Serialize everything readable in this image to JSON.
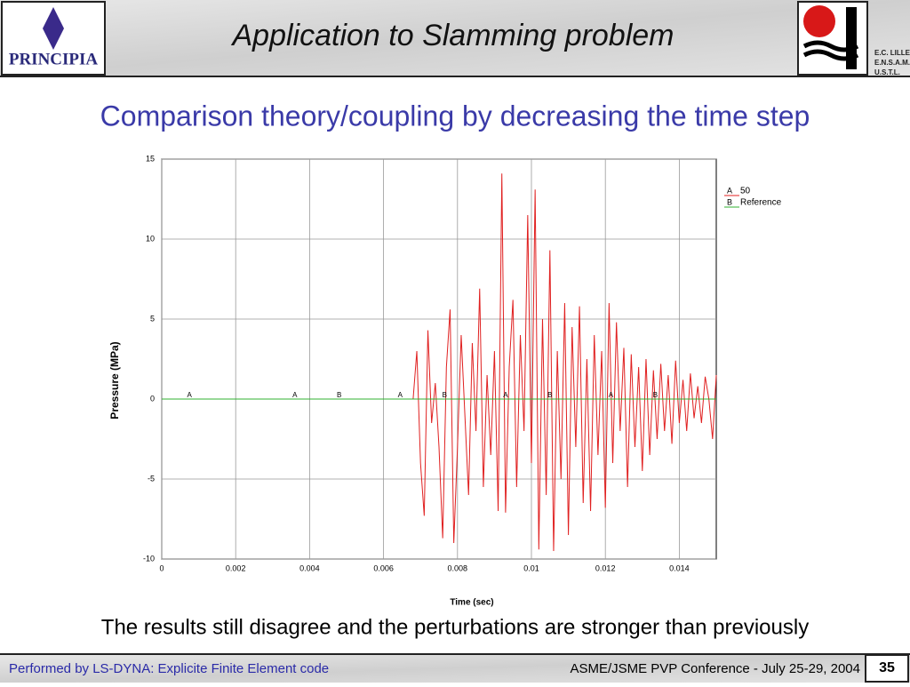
{
  "header": {
    "title": "Application to Slamming problem",
    "left_logo": "PRINCIPIA",
    "right_logo_lines": [
      "E.C. LILLE",
      "E.N.S.A.M.",
      "U.S.T.L."
    ]
  },
  "subtitle": "Comparison theory/coupling by decreasing the time step",
  "caption": "The results still disagree and the perturbations are stronger than previously",
  "footer": {
    "left": "Performed by LS-DYNA: Explicite Finite Element code",
    "right": "ASME/JSME PVP Conference - July 25-29, 2004",
    "page": "35"
  },
  "chart_data": {
    "type": "line",
    "xlabel": "Time (sec)",
    "ylabel": "Pressure (MPa)",
    "xlim": [
      0,
      0.015
    ],
    "xticks": [
      0,
      0.002,
      0.004,
      0.006,
      0.008,
      0.01,
      0.012,
      0.014
    ],
    "ylim": [
      -10,
      15
    ],
    "yticks": [
      -10,
      -5,
      0,
      5,
      10,
      15
    ],
    "grid": true,
    "series": [
      {
        "name": "50",
        "marker": "A",
        "color": "#e02020",
        "x": [
          0,
          0.0068,
          0.0069,
          0.007,
          0.0071,
          0.0072,
          0.0073,
          0.0074,
          0.0075,
          0.0076,
          0.0077,
          0.0078,
          0.0079,
          0.008,
          0.0081,
          0.0082,
          0.0083,
          0.0084,
          0.0085,
          0.0086,
          0.0087,
          0.0088,
          0.0089,
          0.009,
          0.0091,
          0.0092,
          0.0093,
          0.0094,
          0.0095,
          0.0096,
          0.0097,
          0.0098,
          0.0099,
          0.01,
          0.0101,
          0.0102,
          0.0103,
          0.0104,
          0.0105,
          0.0106,
          0.0107,
          0.0108,
          0.0109,
          0.011,
          0.0111,
          0.0112,
          0.0113,
          0.0114,
          0.0115,
          0.0116,
          0.0117,
          0.0118,
          0.0119,
          0.012,
          0.0121,
          0.0122,
          0.0123,
          0.0124,
          0.0125,
          0.0126,
          0.0127,
          0.0128,
          0.0129,
          0.013,
          0.0131,
          0.0132,
          0.0133,
          0.0134,
          0.0135,
          0.0136,
          0.0137,
          0.0138,
          0.0139,
          0.014,
          0.0141,
          0.0142,
          0.0143,
          0.0144,
          0.0145,
          0.0146,
          0.0147,
          0.0148,
          0.0149,
          0.015
        ],
        "values": [
          0,
          0,
          3,
          -4,
          -7.3,
          4.3,
          -1.5,
          1,
          -3,
          -8.7,
          2,
          5.6,
          -9,
          -3,
          4,
          -1,
          -6,
          3.5,
          -2,
          6.9,
          -5.5,
          1.5,
          -3.5,
          3,
          -7,
          14.1,
          -7.1,
          2,
          6.2,
          -5.5,
          4,
          -2,
          11.5,
          -4,
          13.1,
          -9.4,
          5,
          -6,
          9.3,
          -9.5,
          3,
          -5,
          6,
          -8.5,
          4.5,
          -3,
          5.8,
          -6.5,
          2.5,
          -7,
          4,
          -3.5,
          3,
          -6.8,
          6,
          -4,
          4.8,
          -2,
          3.2,
          -5.5,
          2.8,
          -3,
          2,
          -4.5,
          2.5,
          -3.5,
          1.8,
          -2.5,
          2.2,
          -2,
          1.5,
          -2.8,
          2.4,
          -1.5,
          1.2,
          -2,
          1.6,
          -1.2,
          0.8,
          -1.5,
          1.4,
          0,
          -2.5,
          1.5
        ]
      },
      {
        "name": "Reference",
        "marker": "B",
        "color": "#30b030",
        "x": [
          0,
          0.015
        ],
        "values": [
          0,
          0
        ]
      }
    ]
  }
}
